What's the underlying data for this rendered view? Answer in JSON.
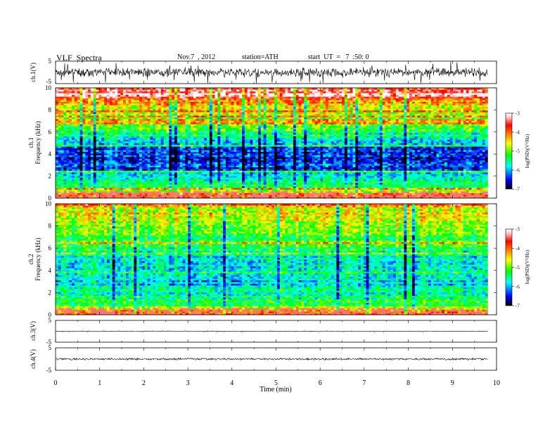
{
  "header": {
    "title": "VLF  Spectra",
    "date": "Nov.7  , 2012",
    "station": "station=ATH",
    "start": "start  UT  =   7  :50: 0"
  },
  "colors": {
    "colormap": [
      "#000000",
      "#0000ff",
      "#00ffff",
      "#00ff00",
      "#ffff00",
      "#ff8000",
      "#ff0000",
      "#ffc0c0",
      "#ffffff"
    ]
  },
  "chart_data": [
    {
      "id": "ch1-waveform",
      "type": "line",
      "ylabel": "ch.1(V)",
      "ylim": [
        -5,
        5
      ],
      "yticks": [
        "5",
        "-5"
      ],
      "xlim": [
        0,
        10
      ],
      "x_end": 9.8,
      "baseline": 0,
      "amplitude": 2.5,
      "spike_amplitude": 5
    },
    {
      "id": "ch1-spectrogram",
      "type": "heatmap",
      "ylabel": "Frequency  (kHz)",
      "channel_label": "ch.1",
      "ylim": [
        0,
        10
      ],
      "yticks": [
        "0",
        "2",
        "4",
        "6",
        "8",
        "10"
      ],
      "xlim": [
        0,
        10
      ],
      "x_end": 9.8,
      "colorbar": {
        "label": "log(PSD)(V²/Hz)",
        "range": [
          -7,
          -3
        ],
        "ticks": [
          "-3",
          "-4",
          "-5",
          "-6",
          "-7"
        ]
      },
      "profile_freq_khz": [
        0,
        1,
        2,
        2.5,
        3,
        4,
        5,
        5.5,
        6,
        7,
        8,
        9,
        10
      ],
      "profile_log_psd": [
        -3.6,
        -5.2,
        -5.6,
        -6.3,
        -6.4,
        -6.3,
        -6.0,
        -5.6,
        -5.3,
        -5.0,
        -4.5,
        -3.9,
        -3.5
      ]
    },
    {
      "id": "ch2-spectrogram",
      "type": "heatmap",
      "ylabel": "Frequency  (kHz)",
      "channel_label": "ch.2",
      "ylim": [
        0,
        10
      ],
      "yticks": [
        "0",
        "2",
        "4",
        "6",
        "8",
        "10"
      ],
      "xlim": [
        0,
        10
      ],
      "x_end": 9.8,
      "colorbar": {
        "label": "log(PSD)(V²/Hz)",
        "range": [
          -7,
          -3
        ],
        "ticks": [
          "-3",
          "-4",
          "-5",
          "-6",
          "-7"
        ]
      },
      "profile_freq_khz": [
        0,
        1,
        2,
        3,
        4,
        5,
        6,
        7,
        8,
        9,
        10
      ],
      "profile_log_psd": [
        -3.8,
        -5.3,
        -5.6,
        -5.9,
        -5.9,
        -5.7,
        -5.4,
        -5.1,
        -4.9,
        -4.6,
        -4.5
      ]
    },
    {
      "id": "ch3-waveform",
      "type": "line",
      "ylabel": "ch.3(V)",
      "ylim": [
        -5,
        5
      ],
      "yticks": [
        "5",
        "-5"
      ],
      "xlim": [
        0,
        10
      ],
      "x_end": 9.8,
      "baseline": 0,
      "amplitude": 0.15,
      "spike_amplitude": 0.3
    },
    {
      "id": "ch4-waveform",
      "type": "line",
      "ylabel": "ch.4(V)",
      "ylim": [
        -5,
        5
      ],
      "yticks": [
        "5",
        "-5"
      ],
      "xlim": [
        0,
        10
      ],
      "x_end": 9.8,
      "baseline": 0,
      "amplitude": 0.5,
      "spike_amplitude": 0.5
    }
  ],
  "xaxis": {
    "label": "Time  (min)",
    "ticks": [
      "0",
      "1",
      "2",
      "3",
      "4",
      "5",
      "6",
      "7",
      "8",
      "9",
      "10"
    ]
  }
}
